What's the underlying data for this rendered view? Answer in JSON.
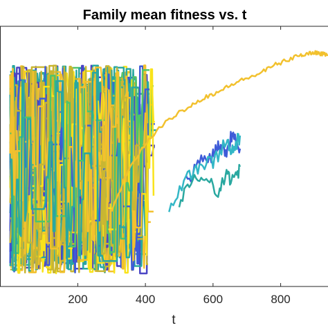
{
  "chart_data": {
    "type": "line",
    "title": "Family mean fitness vs. t",
    "xlabel": "t",
    "ylabel": "",
    "xlim": [
      -30,
      940
    ],
    "ylim": [
      0,
      1
    ],
    "xticks": [
      200,
      400,
      600,
      800
    ],
    "tick_labels": [
      "200",
      "400",
      "600",
      "800"
    ],
    "grid": false,
    "legend": "none",
    "colors": {
      "yellow": "#f9e31b",
      "gold": "#f2c12e",
      "olive": "#c9b632",
      "green": "#4fc46a",
      "teal": "#2aa8a0",
      "cyan": "#33b7c6",
      "blue": "#3e5bd8",
      "violet": "#4a44c4",
      "axis": "#262626"
    },
    "series": [
      {
        "color": "#f2c12e",
        "x": [
          300,
          340,
          380,
          420,
          460,
          500,
          540,
          580,
          620,
          660,
          700,
          740,
          780,
          820,
          860,
          880,
          900,
          920,
          940
        ],
        "y": [
          0.29,
          0.42,
          0.51,
          0.58,
          0.63,
          0.67,
          0.7,
          0.73,
          0.75,
          0.78,
          0.8,
          0.82,
          0.85,
          0.87,
          0.89,
          0.895,
          0.9,
          0.895,
          0.89
        ]
      },
      {
        "color": "#3e5bd8",
        "x": [
          520,
          560,
          600,
          620,
          640,
          660,
          680
        ],
        "y": [
          0.4,
          0.48,
          0.51,
          0.55,
          0.52,
          0.6,
          0.53
        ]
      },
      {
        "color": "#33b7c6",
        "x": [
          470,
          520,
          560,
          600,
          640,
          660,
          680
        ],
        "y": [
          0.3,
          0.42,
          0.46,
          0.48,
          0.56,
          0.52,
          0.58
        ]
      },
      {
        "color": "#2aa8a0",
        "x": [
          500,
          540,
          580,
          620,
          640,
          660,
          680
        ],
        "y": [
          0.32,
          0.4,
          0.43,
          0.36,
          0.44,
          0.4,
          0.46
        ]
      }
    ],
    "noisy_cluster": {
      "x_start": 0,
      "x_end_range": [
        320,
        440
      ],
      "y_band": [
        0.05,
        0.85
      ],
      "colors": [
        "#f9e31b",
        "#f2c12e",
        "#c9b632",
        "#4fc46a",
        "#2aa8a0",
        "#3e5bd8",
        "#4a44c4"
      ]
    }
  }
}
